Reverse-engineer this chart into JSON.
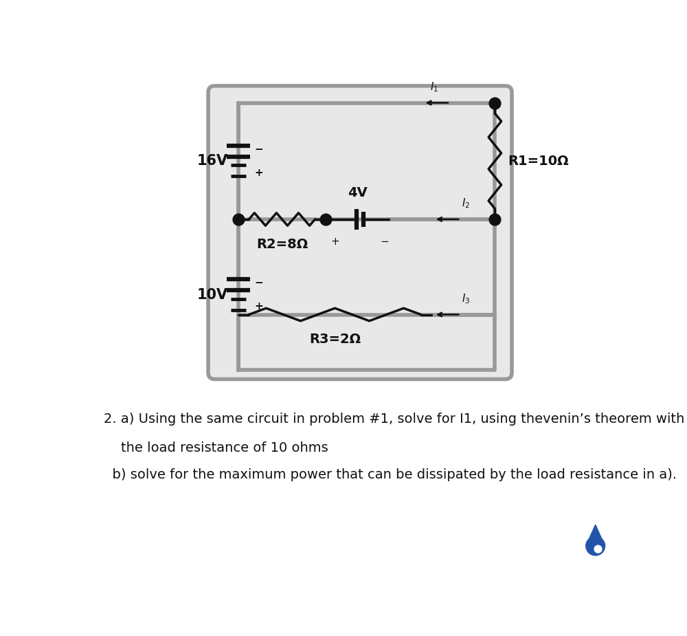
{
  "bg_color": "#ffffff",
  "circuit_bg": "#e8e8e8",
  "wire_color": "#999999",
  "wire_lw": 4.0,
  "component_color": "#111111",
  "component_lw": 2.5,
  "text_color": "#111111",
  "label_16V": "16V",
  "label_10V": "10V",
  "label_R1": "R1=10Ω",
  "label_R2": "R2=8Ω",
  "label_R3": "R3=2Ω",
  "label_4V": "4V",
  "label_I1": "I₁",
  "label_I2": "I₂",
  "label_I3": "I₃",
  "problem_text_line1": "2. a) Using the same circuit in problem #1, solve for I1, using thevenin’s theorem with",
  "problem_text_line2": "    the load resistance of 10 ohms",
  "problem_text_line3": "  b) solve for the maximum power that can be dissipated by the load resistance in a).",
  "blue_dot_color": "#2255aa",
  "font_size_labels": 14,
  "font_size_problem": 14,
  "font_size_component": 13
}
